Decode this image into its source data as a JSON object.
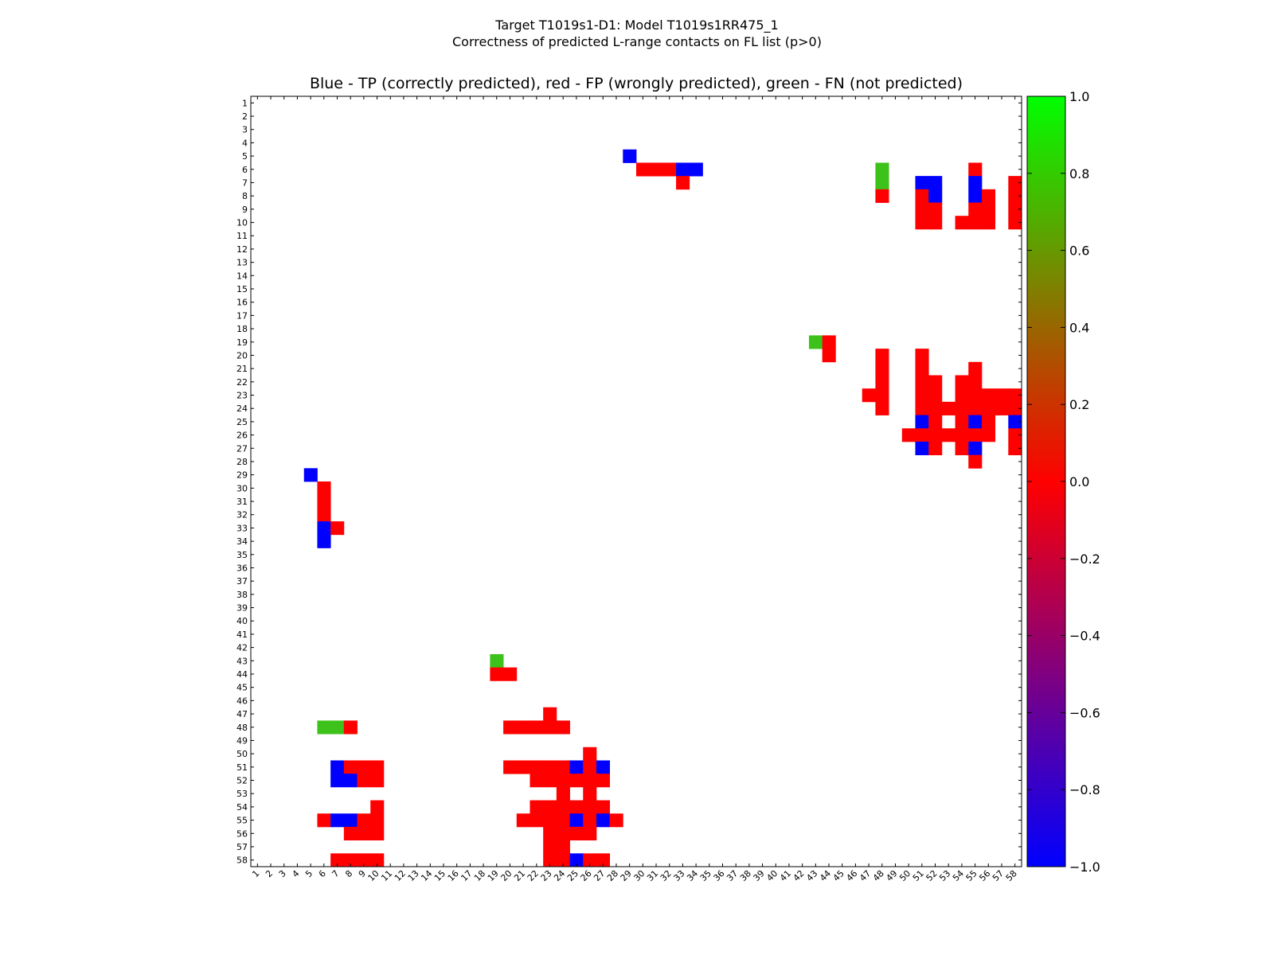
{
  "chart_data": {
    "type": "heatmap",
    "suptitle": [
      "Target T1019s1-D1: Model T1019s1RR475_1",
      "Correctness of predicted L-range contacts on FL list (p>0)"
    ],
    "title": "Blue - TP (correctly predicted), red - FP (wrongly predicted), green - FN (not predicted)",
    "n": 58,
    "x_ticks": [
      "1",
      "2",
      "3",
      "4",
      "5",
      "6",
      "7",
      "8",
      "9",
      "10",
      "11",
      "12",
      "13",
      "14",
      "15",
      "16",
      "17",
      "18",
      "19",
      "20",
      "21",
      "22",
      "23",
      "24",
      "25",
      "26",
      "27",
      "28",
      "29",
      "30",
      "31",
      "32",
      "33",
      "34",
      "35",
      "36",
      "37",
      "38",
      "39",
      "40",
      "41",
      "42",
      "43",
      "44",
      "45",
      "46",
      "47",
      "48",
      "49",
      "50",
      "51",
      "52",
      "53",
      "54",
      "55",
      "56",
      "57",
      "58"
    ],
    "y_ticks": [
      "1",
      "2",
      "3",
      "4",
      "5",
      "6",
      "7",
      "8",
      "9",
      "10",
      "11",
      "12",
      "13",
      "14",
      "15",
      "16",
      "17",
      "18",
      "19",
      "20",
      "21",
      "22",
      "23",
      "24",
      "25",
      "26",
      "27",
      "28",
      "29",
      "30",
      "31",
      "32",
      "33",
      "34",
      "35",
      "36",
      "37",
      "38",
      "39",
      "40",
      "41",
      "42",
      "43",
      "44",
      "45",
      "46",
      "47",
      "48",
      "49",
      "50",
      "51",
      "52",
      "53",
      "54",
      "55",
      "56",
      "57",
      "58"
    ],
    "value_legend": {
      "TP": -1.0,
      "FP": 0.0,
      "FN": 0.8
    },
    "colorbar": {
      "range": [
        -1.0,
        1.0
      ],
      "ticks": [
        "1.0",
        "0.8",
        "0.6",
        "0.4",
        "0.2",
        "0.0",
        "−0.2",
        "−0.4",
        "−0.6",
        "−0.8",
        "−1.0"
      ],
      "tick_values": [
        1.0,
        0.8,
        0.6,
        0.4,
        0.2,
        0.0,
        -0.2,
        -0.4,
        -0.6,
        -0.8,
        -1.0
      ],
      "stops": [
        {
          "value": -1.0,
          "color": "#0000ff"
        },
        {
          "value": 0.0,
          "color": "#ff0000"
        },
        {
          "value": 1.0,
          "color": "#00ff00"
        }
      ]
    },
    "colors": {
      "TP": "#0000ff",
      "FP": "#ff0000",
      "FN": "#3dc21b",
      "FN_light": "#4cc231"
    },
    "cells": [
      [
        29,
        5,
        "TP"
      ],
      [
        30,
        6,
        "FP"
      ],
      [
        31,
        6,
        "FP"
      ],
      [
        32,
        6,
        "FP"
      ],
      [
        33,
        6,
        "TP"
      ],
      [
        34,
        6,
        "TP"
      ],
      [
        33,
        7,
        "FP"
      ],
      [
        48,
        6,
        "FN"
      ],
      [
        48,
        7,
        "FN"
      ],
      [
        48,
        8,
        "FP"
      ],
      [
        55,
        6,
        "FP"
      ],
      [
        51,
        7,
        "TP"
      ],
      [
        52,
        7,
        "TP"
      ],
      [
        55,
        7,
        "TP"
      ],
      [
        58,
        7,
        "FP"
      ],
      [
        51,
        8,
        "FP"
      ],
      [
        52,
        8,
        "TP"
      ],
      [
        55,
        8,
        "TP"
      ],
      [
        56,
        8,
        "FP"
      ],
      [
        58,
        8,
        "FP"
      ],
      [
        51,
        9,
        "FP"
      ],
      [
        52,
        9,
        "FP"
      ],
      [
        55,
        9,
        "FP"
      ],
      [
        56,
        9,
        "FP"
      ],
      [
        58,
        9,
        "FP"
      ],
      [
        51,
        10,
        "FP"
      ],
      [
        52,
        10,
        "FP"
      ],
      [
        54,
        10,
        "FP"
      ],
      [
        55,
        10,
        "FP"
      ],
      [
        56,
        10,
        "FP"
      ],
      [
        58,
        10,
        "FP"
      ],
      [
        43,
        19,
        "FN"
      ],
      [
        44,
        19,
        "FP"
      ],
      [
        44,
        20,
        "FP"
      ],
      [
        48,
        20,
        "FP"
      ],
      [
        51,
        20,
        "FP"
      ],
      [
        48,
        21,
        "FP"
      ],
      [
        51,
        21,
        "FP"
      ],
      [
        55,
        21,
        "FP"
      ],
      [
        48,
        22,
        "FP"
      ],
      [
        51,
        22,
        "FP"
      ],
      [
        52,
        22,
        "FP"
      ],
      [
        54,
        22,
        "FP"
      ],
      [
        55,
        22,
        "FP"
      ],
      [
        47,
        23,
        "FP"
      ],
      [
        48,
        23,
        "FP"
      ],
      [
        51,
        23,
        "FP"
      ],
      [
        52,
        23,
        "FP"
      ],
      [
        54,
        23,
        "FP"
      ],
      [
        55,
        23,
        "FP"
      ],
      [
        56,
        23,
        "FP"
      ],
      [
        57,
        23,
        "FP"
      ],
      [
        58,
        23,
        "FP"
      ],
      [
        48,
        24,
        "FP"
      ],
      [
        51,
        24,
        "FP"
      ],
      [
        52,
        24,
        "FP"
      ],
      [
        53,
        24,
        "FP"
      ],
      [
        54,
        24,
        "FP"
      ],
      [
        55,
        24,
        "FP"
      ],
      [
        56,
        24,
        "FP"
      ],
      [
        57,
        24,
        "FP"
      ],
      [
        58,
        24,
        "FP"
      ],
      [
        51,
        25,
        "TP"
      ],
      [
        52,
        25,
        "FP"
      ],
      [
        54,
        25,
        "FP"
      ],
      [
        55,
        25,
        "TP"
      ],
      [
        56,
        25,
        "FP"
      ],
      [
        58,
        25,
        "TP"
      ],
      [
        50,
        26,
        "FP"
      ],
      [
        51,
        26,
        "FP"
      ],
      [
        52,
        26,
        "FP"
      ],
      [
        53,
        26,
        "FP"
      ],
      [
        54,
        26,
        "FP"
      ],
      [
        55,
        26,
        "FP"
      ],
      [
        56,
        26,
        "FP"
      ],
      [
        58,
        26,
        "FP"
      ],
      [
        51,
        27,
        "TP"
      ],
      [
        52,
        27,
        "FP"
      ],
      [
        54,
        27,
        "FP"
      ],
      [
        55,
        27,
        "TP"
      ],
      [
        58,
        27,
        "FP"
      ],
      [
        55,
        28,
        "FP"
      ],
      [
        5,
        29,
        "TP"
      ],
      [
        6,
        30,
        "FP"
      ],
      [
        6,
        31,
        "FP"
      ],
      [
        6,
        32,
        "FP"
      ],
      [
        6,
        33,
        "TP"
      ],
      [
        7,
        33,
        "FP"
      ],
      [
        6,
        34,
        "TP"
      ],
      [
        19,
        43,
        "FN"
      ],
      [
        19,
        44,
        "FP"
      ],
      [
        20,
        44,
        "FP"
      ],
      [
        23,
        47,
        "FP"
      ],
      [
        6,
        48,
        "FN"
      ],
      [
        7,
        48,
        "FN"
      ],
      [
        8,
        48,
        "FP"
      ],
      [
        20,
        48,
        "FP"
      ],
      [
        21,
        48,
        "FP"
      ],
      [
        22,
        48,
        "FP"
      ],
      [
        23,
        48,
        "FP"
      ],
      [
        24,
        48,
        "FP"
      ],
      [
        26,
        50,
        "FP"
      ],
      [
        7,
        51,
        "TP"
      ],
      [
        8,
        51,
        "FP"
      ],
      [
        9,
        51,
        "FP"
      ],
      [
        10,
        51,
        "FP"
      ],
      [
        20,
        51,
        "FP"
      ],
      [
        21,
        51,
        "FP"
      ],
      [
        22,
        51,
        "FP"
      ],
      [
        23,
        51,
        "FP"
      ],
      [
        24,
        51,
        "FP"
      ],
      [
        25,
        51,
        "TP"
      ],
      [
        26,
        51,
        "FP"
      ],
      [
        27,
        51,
        "TP"
      ],
      [
        7,
        52,
        "TP"
      ],
      [
        8,
        52,
        "TP"
      ],
      [
        9,
        52,
        "FP"
      ],
      [
        10,
        52,
        "FP"
      ],
      [
        22,
        52,
        "FP"
      ],
      [
        23,
        52,
        "FP"
      ],
      [
        24,
        52,
        "FP"
      ],
      [
        25,
        52,
        "FP"
      ],
      [
        26,
        52,
        "FP"
      ],
      [
        27,
        52,
        "FP"
      ],
      [
        24,
        53,
        "FP"
      ],
      [
        26,
        53,
        "FP"
      ],
      [
        10,
        54,
        "FP"
      ],
      [
        22,
        54,
        "FP"
      ],
      [
        23,
        54,
        "FP"
      ],
      [
        24,
        54,
        "FP"
      ],
      [
        25,
        54,
        "FP"
      ],
      [
        26,
        54,
        "FP"
      ],
      [
        27,
        54,
        "FP"
      ],
      [
        6,
        55,
        "FP"
      ],
      [
        7,
        55,
        "TP"
      ],
      [
        8,
        55,
        "TP"
      ],
      [
        9,
        55,
        "FP"
      ],
      [
        10,
        55,
        "FP"
      ],
      [
        21,
        55,
        "FP"
      ],
      [
        22,
        55,
        "FP"
      ],
      [
        23,
        55,
        "FP"
      ],
      [
        24,
        55,
        "FP"
      ],
      [
        25,
        55,
        "TP"
      ],
      [
        26,
        55,
        "FP"
      ],
      [
        27,
        55,
        "TP"
      ],
      [
        28,
        55,
        "FP"
      ],
      [
        8,
        56,
        "FP"
      ],
      [
        9,
        56,
        "FP"
      ],
      [
        10,
        56,
        "FP"
      ],
      [
        23,
        56,
        "FP"
      ],
      [
        24,
        56,
        "FP"
      ],
      [
        25,
        56,
        "FP"
      ],
      [
        26,
        56,
        "FP"
      ],
      [
        23,
        57,
        "FP"
      ],
      [
        24,
        57,
        "FP"
      ],
      [
        7,
        58,
        "FP"
      ],
      [
        8,
        58,
        "FP"
      ],
      [
        9,
        58,
        "FP"
      ],
      [
        10,
        58,
        "FP"
      ],
      [
        23,
        58,
        "FP"
      ],
      [
        24,
        58,
        "FP"
      ],
      [
        25,
        58,
        "TP"
      ],
      [
        26,
        58,
        "FP"
      ],
      [
        27,
        58,
        "FP"
      ]
    ]
  }
}
